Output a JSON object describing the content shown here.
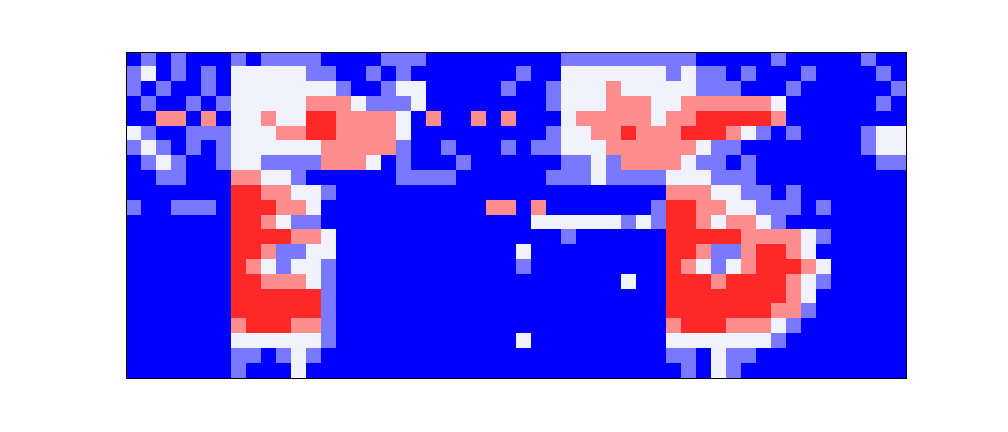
{
  "chart_data": {
    "type": "heatmap",
    "tick_labels": false,
    "grid": false,
    "xlim": [
      0,
      52
    ],
    "ylim": [
      0,
      22
    ],
    "zlim": [
      0,
      4
    ],
    "cells": [
      [
        0,
        1,
        0,
        1,
        0,
        0,
        0,
        1,
        0,
        1,
        1,
        1,
        1,
        0,
        0,
        0,
        0,
        1,
        1,
        1,
        0,
        0,
        0,
        0,
        0,
        0,
        0,
        0,
        0,
        1,
        1,
        1,
        1,
        1,
        1,
        1,
        1,
        1,
        0,
        0,
        0,
        0,
        0,
        1,
        0,
        0,
        0,
        0,
        0,
        1,
        0,
        0
      ],
      [
        1,
        2,
        0,
        1,
        0,
        1,
        0,
        2,
        2,
        2,
        2,
        2,
        1,
        1,
        0,
        0,
        1,
        0,
        1,
        0,
        0,
        0,
        0,
        0,
        0,
        0,
        1,
        0,
        0,
        2,
        2,
        2,
        2,
        2,
        2,
        2,
        1,
        2,
        1,
        1,
        0,
        1,
        0,
        0,
        0,
        1,
        0,
        0,
        0,
        0,
        1,
        0
      ],
      [
        1,
        0,
        1,
        0,
        0,
        1,
        0,
        2,
        2,
        2,
        2,
        2,
        2,
        2,
        1,
        0,
        0,
        1,
        2,
        2,
        0,
        0,
        0,
        0,
        0,
        1,
        0,
        0,
        1,
        2,
        2,
        2,
        3,
        2,
        2,
        2,
        2,
        2,
        1,
        1,
        1,
        0,
        0,
        0,
        1,
        0,
        0,
        0,
        0,
        0,
        0,
        1
      ],
      [
        0,
        1,
        0,
        0,
        1,
        0,
        1,
        2,
        2,
        2,
        2,
        2,
        3,
        3,
        3,
        2,
        1,
        1,
        1,
        2,
        0,
        0,
        0,
        0,
        0,
        0,
        0,
        0,
        1,
        2,
        2,
        2,
        3,
        3,
        3,
        2,
        2,
        3,
        3,
        3,
        3,
        3,
        3,
        2,
        0,
        0,
        0,
        0,
        0,
        0,
        1,
        0
      ],
      [
        0,
        0,
        3,
        3,
        0,
        3,
        0,
        2,
        2,
        3,
        2,
        2,
        4,
        4,
        3,
        3,
        3,
        3,
        2,
        0,
        3,
        0,
        0,
        3,
        0,
        3,
        0,
        0,
        0,
        2,
        3,
        3,
        3,
        3,
        3,
        2,
        3,
        3,
        4,
        4,
        4,
        4,
        4,
        3,
        0,
        0,
        0,
        0,
        0,
        0,
        0,
        0
      ],
      [
        2,
        1,
        0,
        0,
        1,
        1,
        1,
        2,
        2,
        2,
        3,
        3,
        4,
        4,
        3,
        3,
        3,
        3,
        2,
        0,
        0,
        0,
        0,
        0,
        0,
        0,
        0,
        0,
        1,
        2,
        2,
        3,
        3,
        4,
        3,
        3,
        3,
        4,
        4,
        4,
        3,
        2,
        1,
        0,
        1,
        0,
        0,
        0,
        0,
        1,
        2,
        2
      ],
      [
        1,
        2,
        1,
        0,
        1,
        0,
        1,
        2,
        2,
        2,
        2,
        2,
        2,
        3,
        3,
        3,
        3,
        3,
        1,
        0,
        0,
        1,
        0,
        0,
        0,
        1,
        0,
        1,
        1,
        2,
        2,
        2,
        3,
        3,
        3,
        3,
        3,
        3,
        2,
        1,
        1,
        0,
        0,
        0,
        0,
        0,
        0,
        0,
        0,
        1,
        2,
        2
      ],
      [
        0,
        1,
        2,
        1,
        0,
        0,
        1,
        2,
        2,
        1,
        1,
        1,
        1,
        3,
        3,
        3,
        2,
        0,
        1,
        0,
        0,
        0,
        1,
        0,
        0,
        0,
        0,
        0,
        0,
        1,
        1,
        2,
        1,
        3,
        3,
        3,
        3,
        2,
        1,
        1,
        0,
        1,
        0,
        0,
        0,
        0,
        0,
        0,
        0,
        0,
        1,
        1
      ],
      [
        0,
        0,
        1,
        1,
        0,
        0,
        0,
        3,
        3,
        2,
        2,
        1,
        0,
        0,
        0,
        0,
        0,
        0,
        1,
        1,
        1,
        1,
        0,
        0,
        0,
        0,
        0,
        0,
        1,
        1,
        1,
        2,
        1,
        1,
        1,
        1,
        2,
        2,
        2,
        1,
        1,
        1,
        0,
        0,
        0,
        0,
        0,
        0,
        0,
        0,
        0,
        0
      ],
      [
        0,
        0,
        0,
        0,
        0,
        0,
        0,
        4,
        4,
        3,
        3,
        2,
        2,
        1,
        0,
        0,
        0,
        0,
        0,
        0,
        0,
        0,
        0,
        0,
        0,
        0,
        0,
        0,
        0,
        0,
        0,
        0,
        0,
        0,
        0,
        0,
        3,
        3,
        3,
        2,
        2,
        1,
        1,
        0,
        1,
        0,
        0,
        0,
        0,
        0,
        0,
        0
      ],
      [
        1,
        0,
        0,
        1,
        1,
        1,
        0,
        4,
        4,
        4,
        3,
        3,
        2,
        0,
        0,
        0,
        0,
        0,
        0,
        0,
        0,
        0,
        0,
        0,
        3,
        3,
        0,
        3,
        0,
        0,
        0,
        0,
        0,
        0,
        0,
        1,
        4,
        4,
        3,
        3,
        2,
        2,
        1,
        1,
        1,
        0,
        1,
        0,
        0,
        0,
        0,
        0
      ],
      [
        0,
        0,
        0,
        0,
        0,
        0,
        0,
        4,
        4,
        3,
        2,
        1,
        1,
        0,
        0,
        0,
        0,
        0,
        0,
        0,
        0,
        0,
        0,
        0,
        0,
        0,
        0,
        2,
        2,
        2,
        2,
        2,
        2,
        1,
        2,
        1,
        4,
        4,
        3,
        2,
        3,
        3,
        2,
        1,
        0,
        0,
        0,
        0,
        0,
        0,
        0,
        0
      ],
      [
        0,
        0,
        0,
        0,
        0,
        0,
        0,
        4,
        4,
        4,
        4,
        3,
        3,
        2,
        0,
        0,
        0,
        0,
        0,
        0,
        0,
        0,
        0,
        0,
        0,
        0,
        0,
        0,
        0,
        1,
        0,
        0,
        0,
        0,
        0,
        0,
        4,
        4,
        4,
        4,
        4,
        3,
        3,
        3,
        3,
        2,
        1,
        0,
        0,
        0,
        0,
        0
      ],
      [
        0,
        0,
        0,
        0,
        0,
        0,
        0,
        4,
        4,
        3,
        1,
        1,
        2,
        2,
        0,
        0,
        0,
        0,
        0,
        0,
        0,
        0,
        0,
        0,
        0,
        0,
        2,
        0,
        0,
        0,
        0,
        0,
        0,
        0,
        0,
        0,
        4,
        4,
        3,
        1,
        1,
        3,
        4,
        4,
        3,
        2,
        0,
        0,
        0,
        0,
        0,
        0
      ],
      [
        0,
        0,
        0,
        0,
        0,
        0,
        0,
        4,
        3,
        2,
        1,
        2,
        2,
        1,
        0,
        0,
        0,
        0,
        0,
        0,
        0,
        0,
        0,
        0,
        0,
        0,
        1,
        0,
        0,
        0,
        0,
        0,
        0,
        0,
        0,
        0,
        4,
        3,
        2,
        1,
        2,
        3,
        4,
        4,
        4,
        3,
        2,
        0,
        0,
        0,
        0,
        0
      ],
      [
        0,
        0,
        0,
        0,
        0,
        0,
        0,
        4,
        4,
        3,
        3,
        3,
        2,
        1,
        0,
        0,
        0,
        0,
        0,
        0,
        0,
        0,
        0,
        0,
        0,
        0,
        0,
        0,
        0,
        0,
        0,
        0,
        0,
        2,
        0,
        0,
        4,
        4,
        4,
        3,
        4,
        4,
        4,
        4,
        3,
        2,
        1,
        0,
        0,
        0,
        0,
        0
      ],
      [
        0,
        0,
        0,
        0,
        0,
        0,
        0,
        4,
        4,
        4,
        4,
        4,
        4,
        1,
        0,
        0,
        0,
        0,
        0,
        0,
        0,
        0,
        0,
        0,
        0,
        0,
        0,
        0,
        0,
        0,
        0,
        0,
        0,
        0,
        0,
        0,
        4,
        4,
        4,
        4,
        4,
        4,
        4,
        4,
        3,
        2,
        0,
        0,
        0,
        0,
        0,
        0
      ],
      [
        0,
        0,
        0,
        0,
        0,
        0,
        0,
        4,
        4,
        4,
        4,
        4,
        4,
        1,
        0,
        0,
        0,
        0,
        0,
        0,
        0,
        0,
        0,
        0,
        0,
        0,
        0,
        0,
        0,
        0,
        0,
        0,
        0,
        0,
        0,
        0,
        4,
        4,
        4,
        4,
        4,
        4,
        4,
        3,
        3,
        1,
        0,
        0,
        0,
        0,
        0,
        0
      ],
      [
        0,
        0,
        0,
        0,
        0,
        0,
        0,
        3,
        4,
        4,
        4,
        3,
        3,
        1,
        0,
        0,
        0,
        0,
        0,
        0,
        0,
        0,
        0,
        0,
        0,
        0,
        0,
        0,
        0,
        0,
        0,
        0,
        0,
        0,
        0,
        0,
        3,
        4,
        4,
        4,
        3,
        3,
        3,
        2,
        1,
        0,
        0,
        0,
        0,
        0,
        0,
        0
      ],
      [
        0,
        0,
        0,
        0,
        0,
        0,
        0,
        2,
        2,
        2,
        2,
        2,
        2,
        1,
        0,
        0,
        0,
        0,
        0,
        0,
        0,
        0,
        0,
        0,
        0,
        0,
        2,
        0,
        0,
        0,
        0,
        0,
        0,
        0,
        0,
        0,
        2,
        2,
        2,
        2,
        2,
        2,
        2,
        1,
        0,
        0,
        0,
        0,
        0,
        0,
        0,
        0
      ],
      [
        0,
        0,
        0,
        0,
        0,
        0,
        0,
        1,
        1,
        0,
        1,
        2,
        1,
        0,
        0,
        0,
        0,
        0,
        0,
        0,
        0,
        0,
        0,
        0,
        0,
        0,
        0,
        0,
        0,
        0,
        0,
        0,
        0,
        0,
        0,
        0,
        1,
        1,
        0,
        2,
        1,
        1,
        0,
        0,
        0,
        0,
        0,
        0,
        0,
        0,
        0,
        0
      ],
      [
        0,
        0,
        0,
        0,
        0,
        0,
        0,
        1,
        0,
        0,
        0,
        2,
        0,
        0,
        0,
        0,
        0,
        0,
        0,
        0,
        0,
        0,
        0,
        0,
        0,
        0,
        0,
        0,
        0,
        0,
        0,
        0,
        0,
        0,
        0,
        0,
        0,
        1,
        0,
        2,
        1,
        0,
        0,
        0,
        0,
        0,
        0,
        0,
        0,
        0,
        0,
        0
      ]
    ]
  }
}
